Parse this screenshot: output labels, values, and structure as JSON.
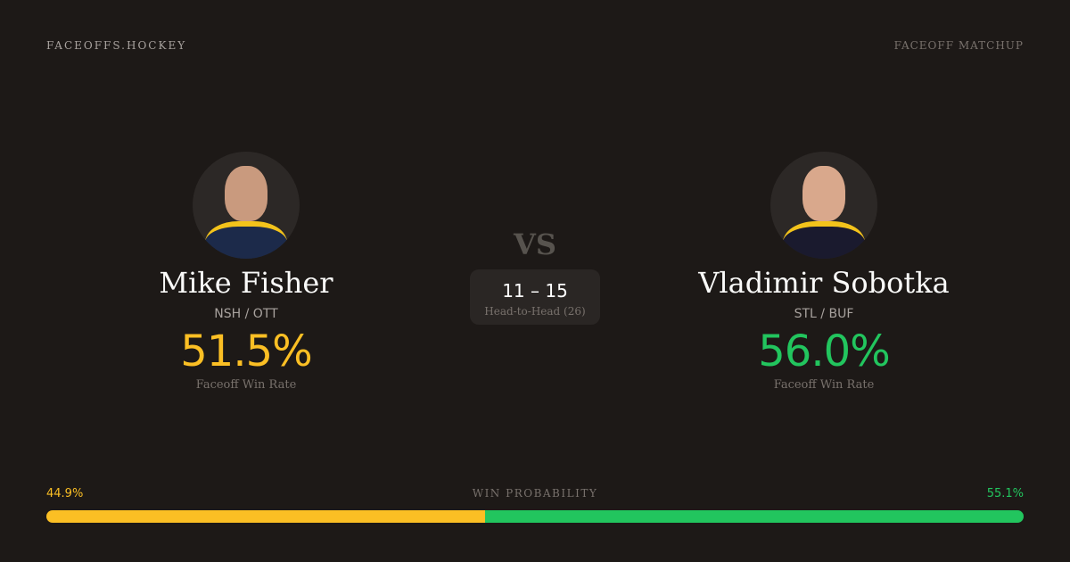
{
  "brand": "FACEOFFS.HOCKEY",
  "page_kind": "FACEOFF MATCHUP",
  "vs": "VS",
  "head_to_head": {
    "score": "11 – 15",
    "label": "Head-to-Head (26)"
  },
  "players": [
    {
      "name": "Mike Fisher",
      "teams": "NSH / OTT",
      "win_rate": "51.5%",
      "win_rate_label": "Faceoff Win Rate",
      "color": "#fbbf24"
    },
    {
      "name": "Vladimir Sobotka",
      "teams": "STL / BUF",
      "win_rate": "56.0%",
      "win_rate_label": "Faceoff Win Rate",
      "color": "#22c55e"
    }
  ],
  "win_probability": {
    "label": "WIN PROBABILITY",
    "left": "44.9%",
    "right": "55.1%",
    "left_value": 44.9,
    "right_value": 55.1
  }
}
